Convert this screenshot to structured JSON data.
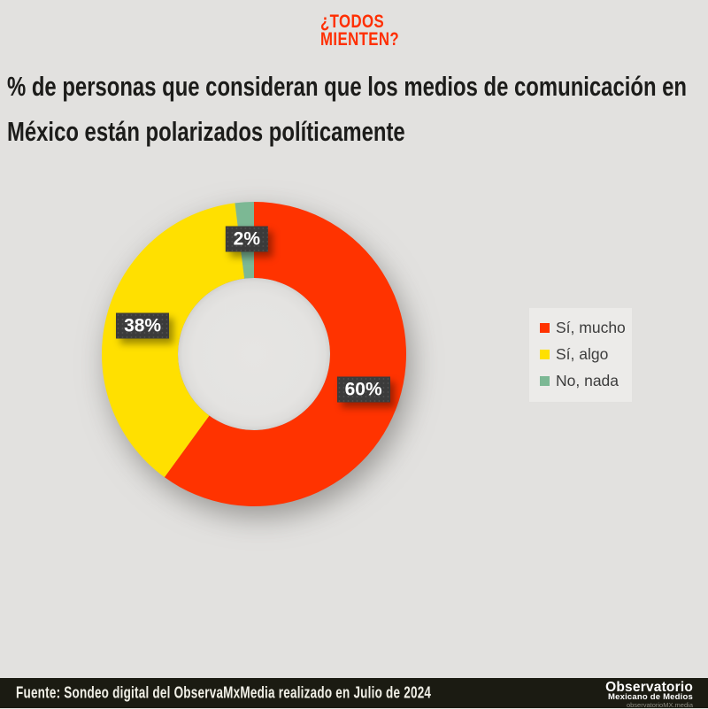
{
  "brand": {
    "line1": "¿TODOS",
    "line2": "MIENTEN?",
    "color": "#ff2f02"
  },
  "title": {
    "line1": "% de personas que consideran que los medios de comunicación en",
    "line2": "México están polarizados políticamente"
  },
  "chart_data": {
    "type": "pie",
    "subtype": "donut",
    "title": "% de personas que consideran que los medios de comunicación en México están polarizados políticamente",
    "categories": [
      "Sí, mucho",
      "Sí, algo",
      "No, nada"
    ],
    "values": [
      60,
      38,
      2
    ],
    "unit": "%",
    "labels": [
      "60%",
      "38%",
      "2%"
    ],
    "colors": [
      "#ff3300",
      "#ffe000",
      "#7cb894"
    ],
    "start_angle_deg": 0,
    "direction": "clockwise",
    "inner_radius_ratio": 0.5,
    "legend_position": "right",
    "label_box_color": "#3b3b3b",
    "label_text_color": "#ffffff"
  },
  "footer": {
    "source": "Fuente: Sondeo digital del ObservaMxMedia realizado en Julio de 2024",
    "org_line1": "Observatorio",
    "org_line2": "Mexicano de Medios",
    "org_line3": "observatorioMX.media"
  },
  "colors": {
    "background": "#e2e1df",
    "title_text": "#1c1c1a",
    "legend_background": "#ecebe9",
    "legend_text": "#3d3d3d",
    "footer_background": "#1b1b12",
    "footer_text": "#f1f0e7"
  }
}
